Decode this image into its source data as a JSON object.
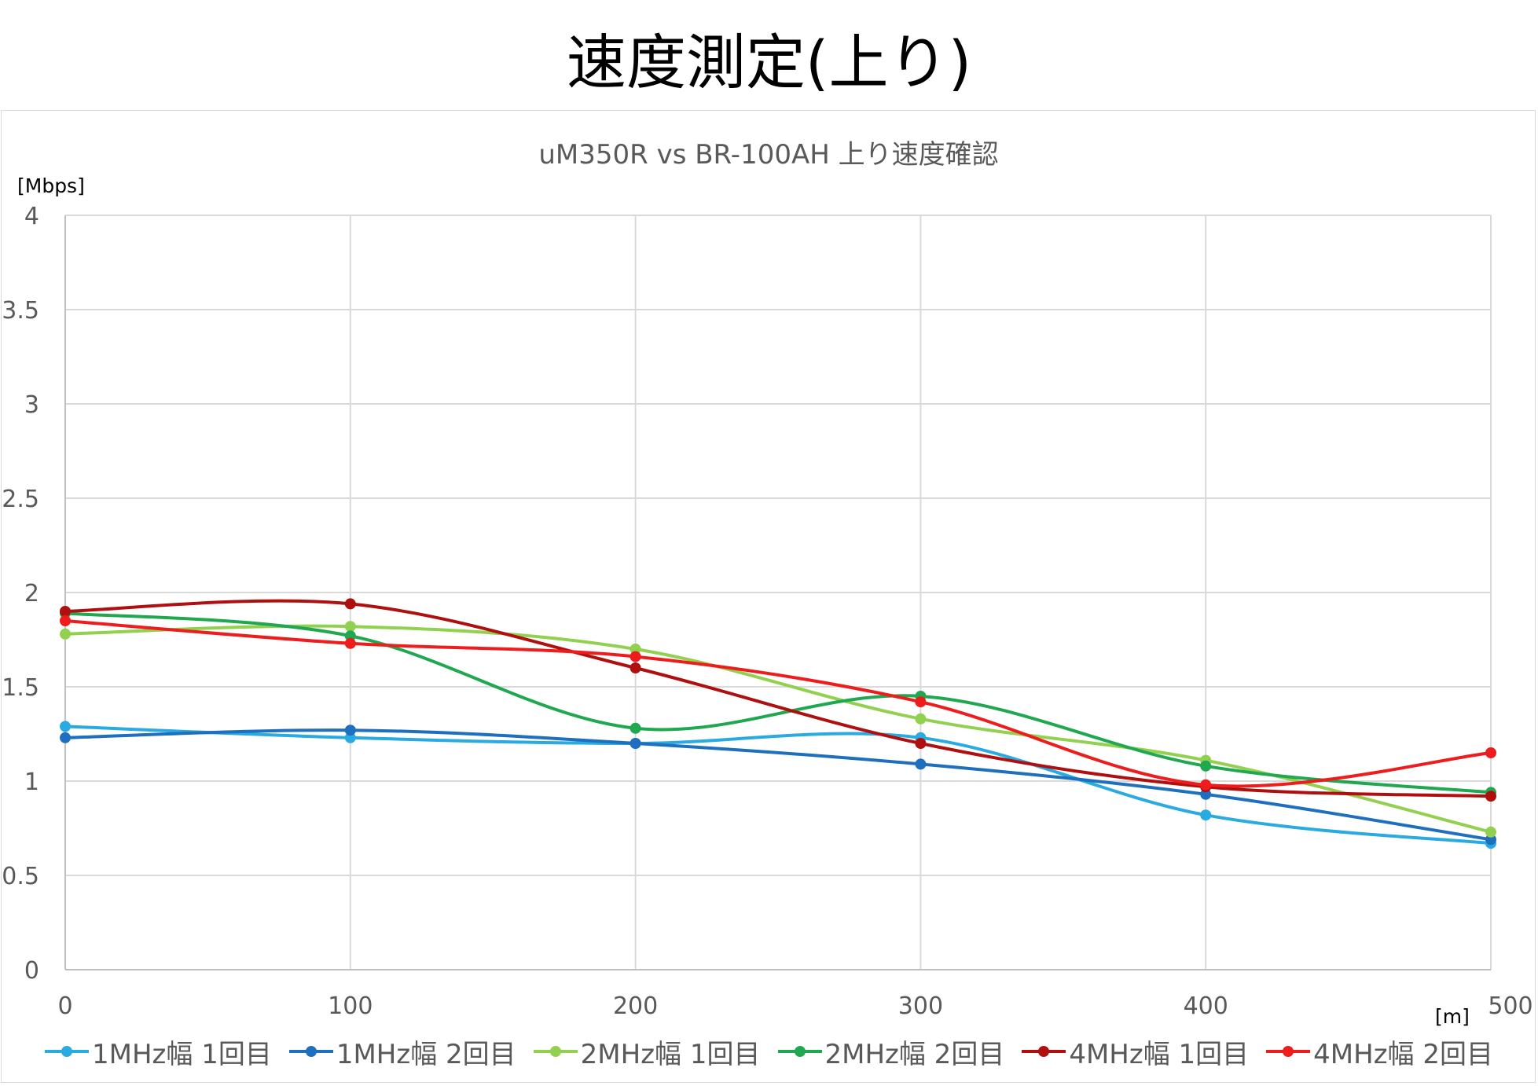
{
  "page_title": "速度測定(上り)",
  "chart_data": {
    "type": "line",
    "title": "uM350R vs BR-100AH  上り速度確認",
    "xlabel": "[m]",
    "ylabel": "[Mbps]",
    "xlim": [
      0,
      500
    ],
    "ylim": [
      0,
      4
    ],
    "x": [
      0,
      100,
      200,
      300,
      400,
      500
    ],
    "x_ticks": [
      "0",
      "100",
      "200",
      "300",
      "400",
      "500"
    ],
    "y_ticks": [
      "0",
      "0.5",
      "1",
      "1.5",
      "2",
      "2.5",
      "3",
      "3.5",
      "4"
    ],
    "y_tick_values": [
      0,
      0.5,
      1,
      1.5,
      2,
      2.5,
      3,
      3.5,
      4
    ],
    "grid": true,
    "smooth": true,
    "legend_position": "bottom",
    "series": [
      {
        "name": "1MHz幅 1回目",
        "color": "#29abe2",
        "values": [
          1.29,
          1.23,
          1.2,
          1.23,
          0.82,
          0.67
        ]
      },
      {
        "name": "1MHz幅 2回目",
        "color": "#1f6fbf",
        "values": [
          1.23,
          1.27,
          1.2,
          1.09,
          0.93,
          0.69
        ]
      },
      {
        "name": "2MHz幅 1回目",
        "color": "#92d050",
        "values": [
          1.78,
          1.82,
          1.7,
          1.33,
          1.11,
          0.73
        ]
      },
      {
        "name": "2MHz幅 2回目",
        "color": "#1fa84f",
        "values": [
          1.89,
          1.77,
          1.28,
          1.45,
          1.08,
          0.94
        ]
      },
      {
        "name": "4MHz幅 1回目",
        "color": "#b00f0f",
        "values": [
          1.9,
          1.94,
          1.6,
          1.2,
          0.97,
          0.92
        ]
      },
      {
        "name": "4MHz幅 2回目",
        "color": "#ee1c1c",
        "values": [
          1.85,
          1.73,
          1.66,
          1.42,
          0.98,
          1.15
        ]
      }
    ]
  }
}
